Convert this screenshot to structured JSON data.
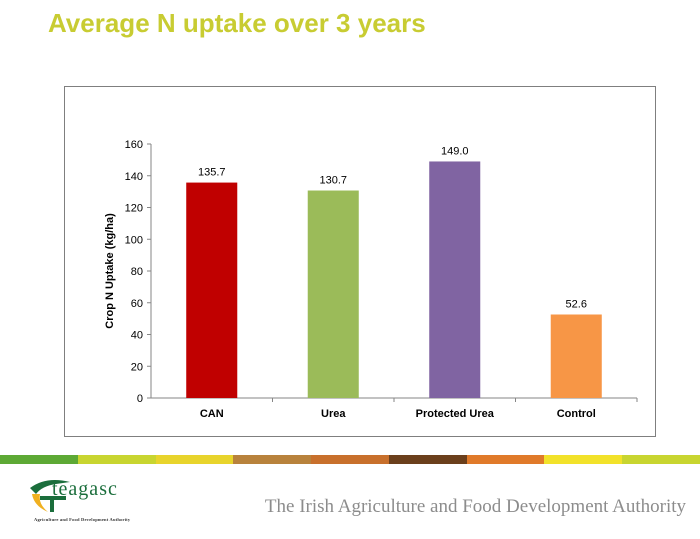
{
  "slide_title": "Average N uptake over 3 years",
  "chart_data": {
    "type": "bar",
    "categories": [
      "CAN",
      "Urea",
      "Protected Urea",
      "Control"
    ],
    "values": [
      135.7,
      130.7,
      149.0,
      52.6
    ],
    "data_labels": [
      "135.7",
      "130.7",
      "149.0",
      "52.6"
    ],
    "colors": [
      "#c00000",
      "#9bbb59",
      "#8064a2",
      "#f79646"
    ],
    "title": "",
    "xlabel": "",
    "ylabel": "Crop N Uptake (kg/ha)",
    "ylim": [
      0,
      160
    ],
    "yticks": [
      0,
      20,
      40,
      60,
      80,
      100,
      120,
      140,
      160
    ],
    "grid": false,
    "legend": "none"
  },
  "footer": {
    "logo_text": "teagasc",
    "logo_subtext": "Agriculture and Food Development Authority",
    "authority_text": "The Irish Agriculture and Food Development Authority",
    "stripe_colors": [
      "#5da935",
      "#c8d530",
      "#e8d42c",
      "#b8823c",
      "#c8702c",
      "#6b3f1c",
      "#e07a2a",
      "#f2e22a",
      "#c8d530"
    ]
  }
}
